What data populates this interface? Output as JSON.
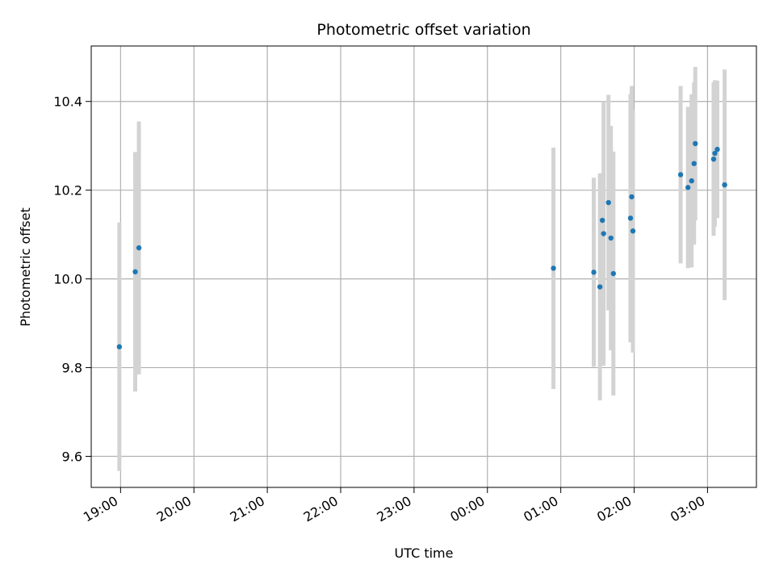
{
  "chart_data": {
    "type": "scatter",
    "title": "Photometric offset variation",
    "xlabel": "UTC time",
    "ylabel": "Photometric offset",
    "x_axis": "time",
    "xlim": [
      "18:36",
      "03:40"
    ],
    "ylim": [
      9.53,
      10.525
    ],
    "x_ticks": [
      "19:00",
      "20:00",
      "21:00",
      "22:00",
      "23:00",
      "00:00",
      "01:00",
      "02:00",
      "03:00"
    ],
    "y_ticks": [
      "9.6",
      "9.8",
      "10.0",
      "10.2",
      "10.4"
    ],
    "grid": true,
    "colors": {
      "points": "#1f77b4",
      "errorbars": "#d3d3d3",
      "grid": "#b0b0b0"
    },
    "points": [
      {
        "t": "18:59",
        "y": 9.847,
        "err": 0.28
      },
      {
        "t": "19:12",
        "y": 10.016,
        "err": 0.27
      },
      {
        "t": "19:15",
        "y": 10.07,
        "err": 0.285
      },
      {
        "t": "00:54",
        "y": 10.024,
        "err": 0.272
      },
      {
        "t": "01:27",
        "y": 10.015,
        "err": 0.213
      },
      {
        "t": "01:32",
        "y": 9.982,
        "err": 0.256
      },
      {
        "t": "01:34",
        "y": 10.132,
        "err": 0.105
      },
      {
        "t": "01:35",
        "y": 10.102,
        "err": 0.298
      },
      {
        "t": "01:39",
        "y": 10.172,
        "err": 0.243
      },
      {
        "t": "01:41",
        "y": 10.092,
        "err": 0.253
      },
      {
        "t": "01:43",
        "y": 10.012,
        "err": 0.275
      },
      {
        "t": "01:57",
        "y": 10.137,
        "err": 0.28
      },
      {
        "t": "01:58",
        "y": 10.185,
        "err": 0.25
      },
      {
        "t": "01:59",
        "y": 10.108,
        "err": 0.274
      },
      {
        "t": "02:38",
        "y": 10.235,
        "err": 0.2
      },
      {
        "t": "02:44",
        "y": 10.206,
        "err": 0.182
      },
      {
        "t": "02:47",
        "y": 10.221,
        "err": 0.195
      },
      {
        "t": "02:49",
        "y": 10.26,
        "err": 0.183
      },
      {
        "t": "02:50",
        "y": 10.305,
        "err": 0.173
      },
      {
        "t": "03:05",
        "y": 10.27,
        "err": 0.173
      },
      {
        "t": "03:06",
        "y": 10.283,
        "err": 0.165
      },
      {
        "t": "03:08",
        "y": 10.292,
        "err": 0.155
      },
      {
        "t": "03:14",
        "y": 10.212,
        "err": 0.26
      }
    ]
  }
}
